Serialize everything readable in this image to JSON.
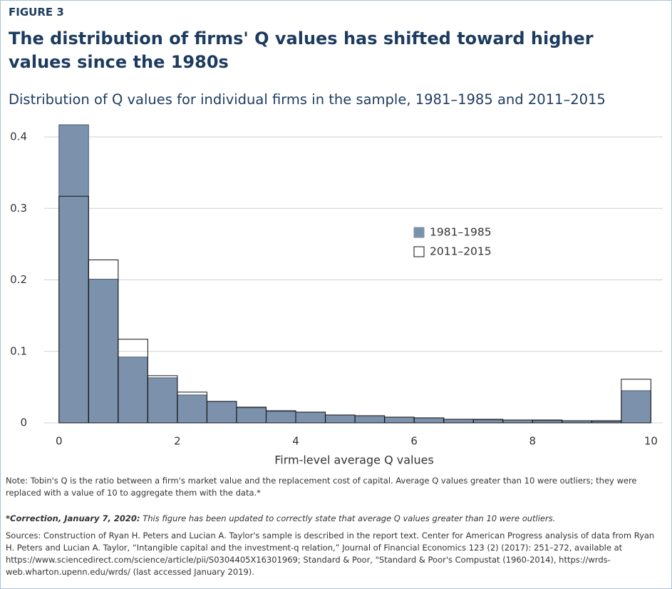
{
  "chart_data": {
    "type": "histogram",
    "figure_label": "FIGURE 3",
    "title": "The distribution of firms' Q values has shifted toward higher values since the 1980s",
    "subtitle": "Distribution of Q values for individual firms in the sample, 1981–1985 and 2011–2015",
    "xlabel": "Firm-level average Q values",
    "bins": [
      0,
      0.5,
      1,
      1.5,
      2,
      2.5,
      3,
      3.5,
      4,
      4.5,
      5,
      5.5,
      6,
      6.5,
      7,
      7.5,
      8,
      8.5,
      9,
      9.5,
      10
    ],
    "series": [
      {
        "name": "1981–1985",
        "color": "#7b91ac",
        "edgecolor": "#4a5a70",
        "values": [
          0.417,
          0.201,
          0.092,
          0.063,
          0.039,
          0.03,
          0.021,
          0.016,
          0.015,
          0.011,
          0.01,
          0.008,
          0.007,
          0.005,
          0.004,
          0.004,
          0.003,
          0.003,
          0.002,
          0.045
        ]
      },
      {
        "name": "2011–2015",
        "edgecolor": "#111111",
        "values": [
          0.317,
          0.228,
          0.117,
          0.066,
          0.043,
          0.03,
          0.022,
          0.017,
          0.015,
          0.011,
          0.01,
          0.008,
          0.007,
          0.005,
          0.005,
          0.004,
          0.004,
          0.003,
          0.003,
          0.061
        ]
      }
    ],
    "xlim": [
      -0.25,
      10.2
    ],
    "ylim": [
      0,
      0.42
    ],
    "xticks": [
      0,
      2,
      4,
      6,
      8,
      10
    ],
    "yticks": [
      0,
      0.1,
      0.2,
      0.3,
      0.4
    ],
    "grid": true,
    "note": "Note: Tobin's Q is the ratio between a firm's market value and the replacement cost of capital. Average Q values greater than 10 were outliers; they were replaced with a value of 10 to aggregate them with the data.*",
    "correction_label": "*Correction, January 7, 2020:",
    "correction_text": "This figure has been updated to correctly state that average Q values greater than 10 were outliers.",
    "sources": "Sources: Construction of Ryan H. Peters and Lucian A. Taylor's sample is described in the report text. Center for American Progress analysis of data from Ryan H. Peters and Lucian A. Taylor, “Intangible capital and the investment-q relation,” Journal of Financial Economics 123 (2) (2017): 251–272, available at https://www.sciencedirect.com/science/article/pii/S0304405X16301969; Standard & Poor, \"Standard & Poor's Compustat (1960-2014), https://wrds-web.wharton.upenn.edu/wrds/ (last accessed January 2019)."
  }
}
